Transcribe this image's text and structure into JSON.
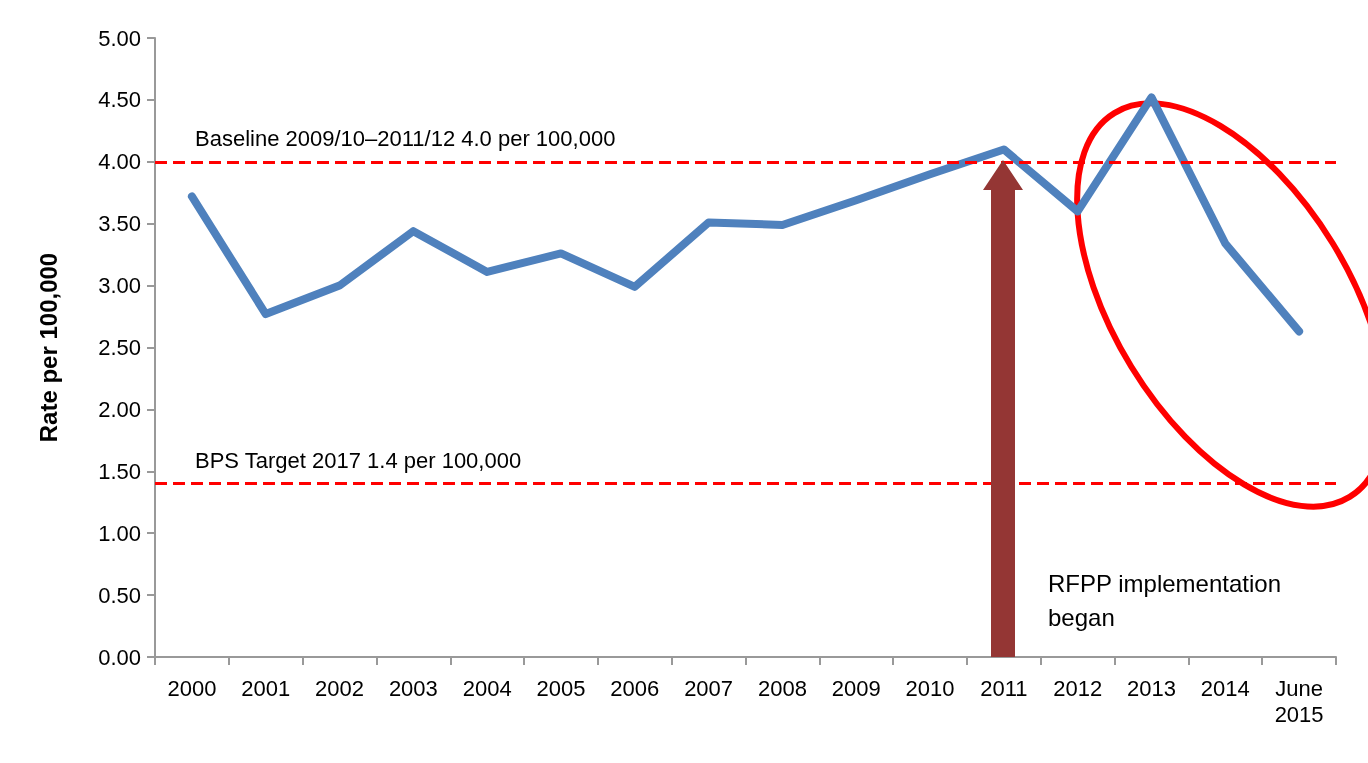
{
  "chart_data": {
    "type": "line",
    "ylabel": "Rate per 100,000",
    "categories": [
      "2000",
      "2001",
      "2002",
      "2003",
      "2004",
      "2005",
      "2006",
      "2007",
      "2008",
      "2009",
      "2010",
      "2011",
      "2012",
      "2013",
      "2014",
      "June\n2015"
    ],
    "series": [
      {
        "color": "#4f81bd",
        "values": [
          3.72,
          2.77,
          3.0,
          3.44,
          3.11,
          3.26,
          2.99,
          3.51,
          3.49,
          3.69,
          3.9,
          4.1,
          3.6,
          4.52,
          3.34,
          2.63
        ]
      }
    ],
    "ylim": [
      0,
      5
    ],
    "yticks": [
      {
        "value": 0,
        "label": "0.00"
      },
      {
        "value": 0.5,
        "label": "0.50"
      },
      {
        "value": 1,
        "label": "1.00"
      },
      {
        "value": 1.5,
        "label": "1.50"
      },
      {
        "value": 2,
        "label": "2.00"
      },
      {
        "value": 2.5,
        "label": "2.50"
      },
      {
        "value": 3,
        "label": "3.00"
      },
      {
        "value": 3.5,
        "label": "3.50"
      },
      {
        "value": 4,
        "label": "4.00"
      },
      {
        "value": 4.5,
        "label": "4.50"
      },
      {
        "value": 5,
        "label": "5.00"
      }
    ],
    "ref_lines": [
      {
        "axis": "y",
        "value": 4.0,
        "label": "Baseline 2009/10–2011/12 4.0 per 100,000",
        "color": "#ff0000",
        "line_style": "dashed"
      },
      {
        "axis": "y",
        "value": 1.4,
        "label": "BPS Target 2017 1.4 per 100,000",
        "color": "#ff0000",
        "line_style": "dashed"
      }
    ],
    "annotations": [
      "RFPP implementation began"
    ],
    "grid": false,
    "line_style": "solid"
  }
}
